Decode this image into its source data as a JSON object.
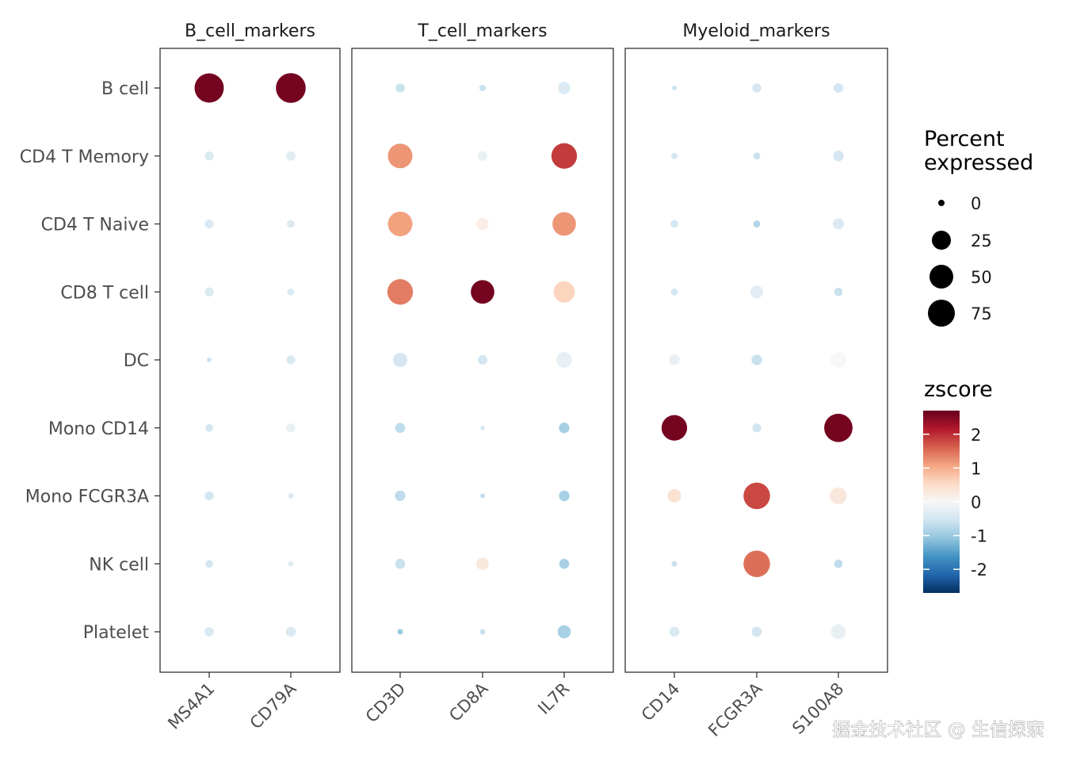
{
  "chart_data": {
    "type": "scatter",
    "subtype": "dot-plot",
    "title": "",
    "xlabel": "",
    "ylabel": "",
    "facets": [
      {
        "name": "B_cell_markers",
        "genes": [
          "MS4A1",
          "CD79A"
        ]
      },
      {
        "name": "T_cell_markers",
        "genes": [
          "CD3D",
          "CD8A",
          "IL7R"
        ]
      },
      {
        "name": "Myeloid_markers",
        "genes": [
          "CD14",
          "FCGR3A",
          "S100A8"
        ]
      }
    ],
    "cell_types": [
      "B cell",
      "CD4 T Memory",
      "CD4 T Naive",
      "CD8 T cell",
      "DC",
      "Mono CD14",
      "Mono FCGR3A",
      "NK cell",
      "Platelet"
    ],
    "genes": [
      "MS4A1",
      "CD79A",
      "CD3D",
      "CD8A",
      "IL7R",
      "CD14",
      "FCGR3A",
      "S100A8"
    ],
    "percent_expressed": [
      [
        85,
        88,
        8,
        4,
        15,
        2,
        8,
        9
      ],
      [
        8,
        9,
        60,
        9,
        65,
        4,
        5,
        11
      ],
      [
        8,
        6,
        60,
        15,
        55,
        6,
        5,
        12
      ],
      [
        8,
        5,
        65,
        55,
        45,
        5,
        16,
        7
      ],
      [
        2,
        8,
        20,
        9,
        25,
        11,
        11,
        24
      ],
      [
        6,
        8,
        10,
        2,
        11,
        65,
        8,
        80
      ],
      [
        8,
        3,
        11,
        2,
        11,
        18,
        70,
        28
      ],
      [
        6,
        3,
        10,
        15,
        10,
        3,
        70,
        7
      ],
      [
        9,
        10,
        3,
        3,
        17,
        10,
        10,
        22
      ]
    ],
    "zscore": [
      [
        2.6,
        2.6,
        -0.6,
        -0.6,
        -0.4,
        -0.6,
        -0.5,
        -0.5
      ],
      [
        -0.4,
        -0.3,
        1.2,
        -0.2,
        1.9,
        -0.5,
        -0.6,
        -0.5
      ],
      [
        -0.4,
        -0.4,
        1.1,
        0.2,
        1.2,
        -0.5,
        -0.8,
        -0.4
      ],
      [
        -0.4,
        -0.4,
        1.4,
        2.6,
        0.6,
        -0.5,
        -0.3,
        -0.6
      ],
      [
        -0.6,
        -0.4,
        -0.5,
        -0.5,
        -0.2,
        -0.2,
        -0.6,
        0.0
      ],
      [
        -0.5,
        -0.2,
        -0.7,
        -0.5,
        -0.9,
        2.6,
        -0.5,
        2.6
      ],
      [
        -0.5,
        -0.4,
        -0.7,
        -0.7,
        -0.9,
        0.4,
        1.8,
        0.3
      ],
      [
        -0.5,
        -0.3,
        -0.6,
        0.3,
        -0.9,
        -0.6,
        1.5,
        -0.7
      ],
      [
        -0.4,
        -0.4,
        -1.0,
        -0.6,
        -0.9,
        -0.4,
        -0.5,
        -0.2
      ]
    ],
    "size_legend": {
      "title": "Percent expressed",
      "breaks": [
        0,
        25,
        50,
        75
      ]
    },
    "color_legend": {
      "title": "zscore",
      "breaks": [
        2,
        1,
        0,
        -1,
        -2
      ],
      "range": [
        -2.7,
        2.7
      ],
      "colors": [
        "#053061",
        "#2166ac",
        "#4393c3",
        "#92c5de",
        "#d1e5f0",
        "#f7f7f7",
        "#fddbc7",
        "#f4a582",
        "#d6604d",
        "#b2182b",
        "#67001f"
      ]
    },
    "legend_position": "right",
    "grid": false
  },
  "watermark": "掘金技术社区 @ 生信探索"
}
